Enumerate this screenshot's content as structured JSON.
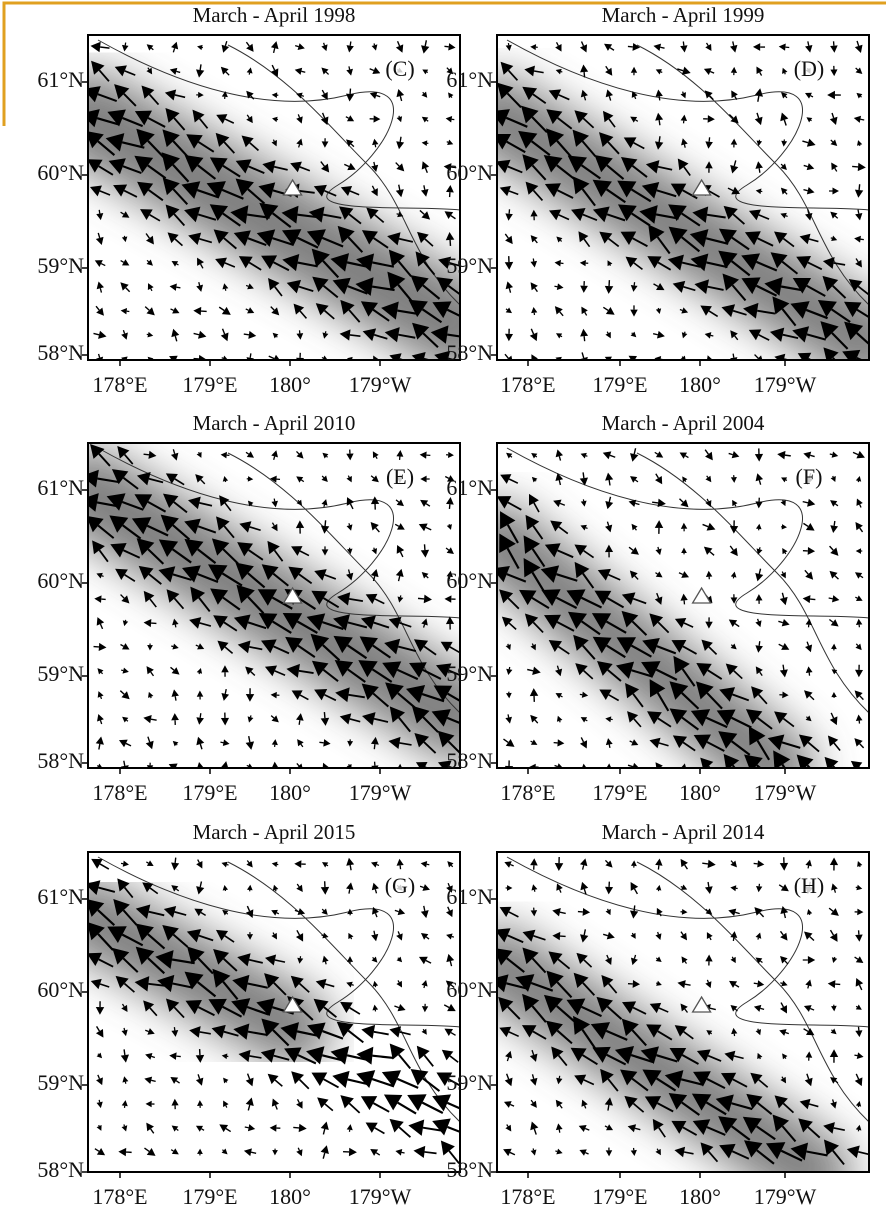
{
  "panels": [
    {
      "title": "March - April 1998",
      "label": "(C)"
    },
    {
      "title": "March - April 1999",
      "label": "(D)"
    },
    {
      "title": "March - April 2010",
      "label": "(E)"
    },
    {
      "title": "March - April 2004",
      "label": "(F)"
    },
    {
      "title": "March - April 2015",
      "label": "(G)"
    },
    {
      "title": "March - April 2014",
      "label": "(H)"
    }
  ],
  "lat_labels": [
    "61°N",
    "60°N",
    "59°N",
    "58°N"
  ],
  "lon_labels": [
    "178°E",
    "179°E",
    "180°",
    "179°W"
  ]
}
